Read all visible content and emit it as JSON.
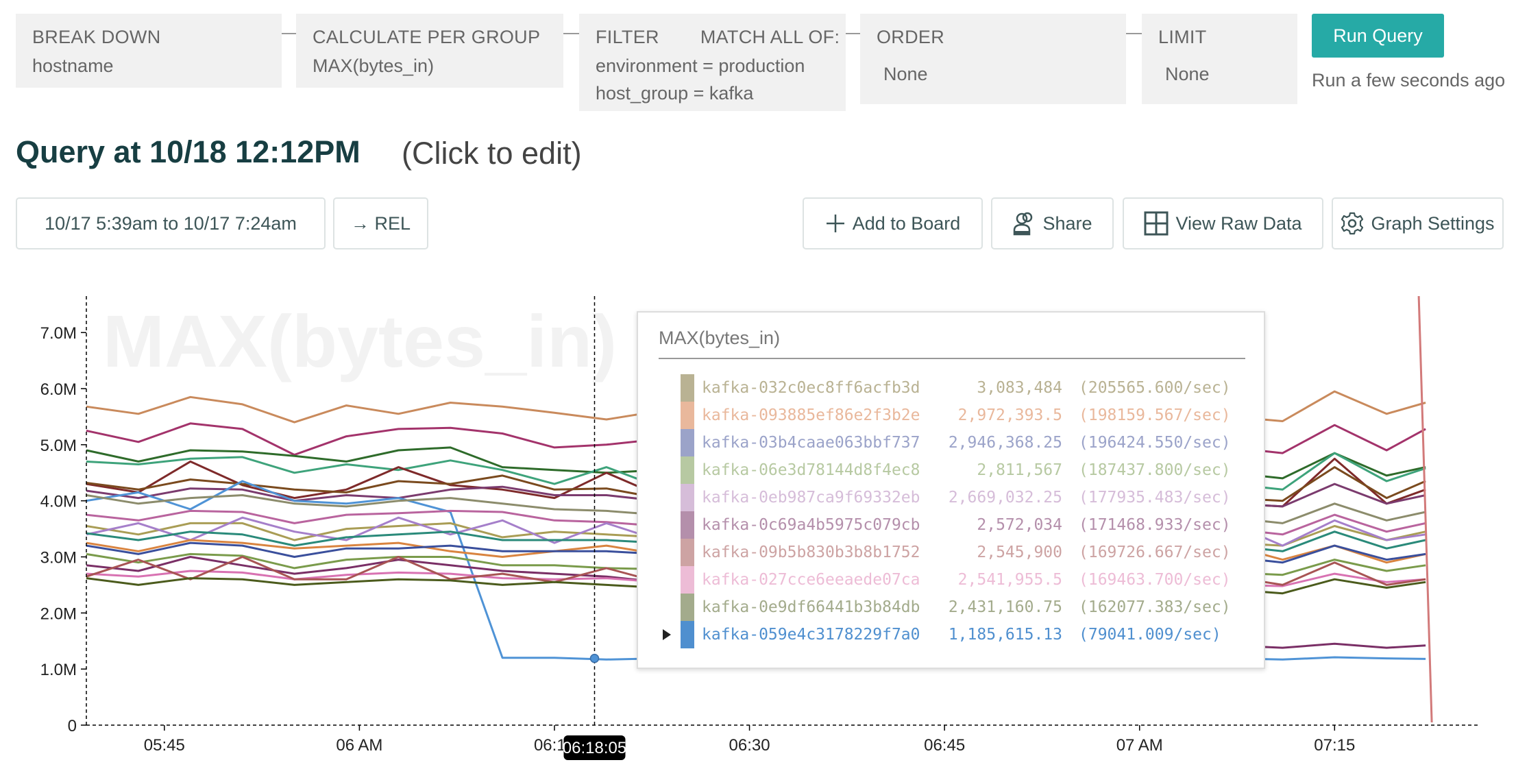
{
  "query_builder": {
    "break_down": {
      "label": "BREAK DOWN",
      "values": [
        "hostname"
      ]
    },
    "calculate": {
      "label": "CALCULATE PER GROUP",
      "values": [
        "MAX(bytes_in)"
      ]
    },
    "filter": {
      "label": "FILTER",
      "match_label": "MATCH ALL OF:",
      "values": [
        "environment = production",
        "host_group = kafka"
      ]
    },
    "order": {
      "label": "ORDER",
      "values": [
        "None"
      ]
    },
    "limit": {
      "label": "LIMIT",
      "values": [
        "None"
      ]
    },
    "run_button": "Run Query",
    "run_status": "Run a few seconds ago",
    "accent_color": "#26aaa6"
  },
  "header": {
    "title": "Query at 10/18 12:12PM",
    "edit_hint": "(Click to edit)"
  },
  "toolbar": {
    "time_range": "10/17 5:39am to 10/17 7:24am",
    "relative_button": "→ REL",
    "add_to_board": "Add to Board",
    "share": "Share",
    "view_raw_data": "View Raw Data",
    "graph_settings": "Graph Settings",
    "icons": {
      "add_to_board": "plus-icon",
      "share": "users-icon",
      "view_raw_data": "grid-icon",
      "graph_settings": "gear-icon"
    }
  },
  "tooltip": {
    "title": "MAX(bytes_in)",
    "rows": [
      {
        "name": "kafka-032c0ec8ff6acfb3d",
        "value": "3,083,484",
        "rate": "(205565.600/sec)",
        "color": "#b9b293"
      },
      {
        "name": "kafka-093885ef86e2f3b2e",
        "value": "2,972,393.5",
        "rate": "(198159.567/sec)",
        "color": "#e9b89c"
      },
      {
        "name": "kafka-03b4caae063bbf737",
        "value": "2,946,368.25",
        "rate": "(196424.550/sec)",
        "color": "#9ba3c9"
      },
      {
        "name": "kafka-06e3d78144d8f4ec8",
        "value": "2,811,567",
        "rate": "(187437.800/sec)",
        "color": "#b7c9a2"
      },
      {
        "name": "kafka-0eb987ca9f69332eb",
        "value": "2,669,032.25",
        "rate": "(177935.483/sec)",
        "color": "#d6bdd9"
      },
      {
        "name": "kafka-0c69a4b5975c079cb",
        "value": "2,572,034",
        "rate": "(171468.933/sec)",
        "color": "#b48fab"
      },
      {
        "name": "kafka-09b5b830b3b8b1752",
        "value": "2,545,900",
        "rate": "(169726.667/sec)",
        "color": "#cda3a3"
      },
      {
        "name": "kafka-027cce6eeaede07ca",
        "value": "2,541,955.5",
        "rate": "(169463.700/sec)",
        "color": "#edbcd6"
      },
      {
        "name": "kafka-0e9df66441b3b84db",
        "value": "2,431,160.75",
        "rate": "(162077.383/sec)",
        "color": "#a3ab8c"
      },
      {
        "name": "kafka-059e4c3178229f7a0",
        "value": "1,185,615.13",
        "rate": "(79041.009/sec)",
        "color": "#4f8fcf",
        "highlighted": true
      }
    ]
  },
  "chart_data": {
    "type": "line",
    "watermark": "MAX(bytes_in)",
    "y_unit": "M",
    "ylim": [
      0,
      7.65
    ],
    "xlim": [
      "05:39",
      "07:26"
    ],
    "y_ticks": [
      "0",
      "1.0M",
      "2.0M",
      "3.0M",
      "4.0M",
      "5.0M",
      "6.0M",
      "7.0M"
    ],
    "y_tick_values": [
      0,
      1,
      2,
      3,
      4,
      5,
      6,
      7
    ],
    "x_ticks": [
      {
        "label": "05:45",
        "time": "05:45"
      },
      {
        "label": "06 AM",
        "time": "06:00"
      },
      {
        "label": "06:15",
        "time": "06:15"
      },
      {
        "label": "06:30",
        "time": "06:30"
      },
      {
        "label": "06:45",
        "time": "06:45"
      },
      {
        "label": "07 AM",
        "time": "07:00"
      },
      {
        "label": "07:15",
        "time": "07:15"
      }
    ],
    "hover_time": "06:18:05",
    "hover_marker_value": 1.19,
    "marker_line": {
      "color": "#d27a7a",
      "time": "07:22"
    },
    "grid": false,
    "legend": "tooltip",
    "x": [
      "05:39",
      "05:43",
      "05:47",
      "05:51",
      "05:55",
      "05:59",
      "06:03",
      "06:07",
      "06:11",
      "06:15",
      "06:19",
      "06:23",
      "06:27",
      "06:31",
      "06:35",
      "06:39",
      "06:43",
      "06:47",
      "06:51",
      "06:55",
      "06:59",
      "07:03",
      "07:07",
      "07:11",
      "07:15",
      "07:19",
      "07:22"
    ],
    "series": [
      {
        "color": "#c98a5c",
        "values": [
          5.68,
          5.55,
          5.85,
          5.72,
          5.4,
          5.7,
          5.55,
          5.75,
          5.68,
          5.57,
          5.45,
          5.6,
          5.5,
          5.55,
          5.48,
          5.62,
          5.5,
          5.58,
          5.45,
          5.6,
          5.52,
          5.45,
          5.5,
          5.42,
          5.95,
          5.55,
          5.75
        ]
      },
      {
        "color": "#a3336b",
        "values": [
          5.25,
          5.05,
          5.38,
          5.28,
          4.82,
          5.15,
          5.28,
          5.3,
          5.2,
          4.95,
          5.0,
          5.1,
          5.05,
          4.9,
          5.0,
          4.95,
          5.05,
          4.9,
          5.1,
          5.0,
          5.15,
          5.05,
          4.95,
          4.85,
          5.35,
          4.9,
          5.28
        ]
      },
      {
        "color": "#2e6b2a",
        "values": [
          4.9,
          4.7,
          4.9,
          4.88,
          4.8,
          4.7,
          4.9,
          4.95,
          4.6,
          4.55,
          4.5,
          4.55,
          4.45,
          4.5,
          4.4,
          4.5,
          4.45,
          4.55,
          4.4,
          4.5,
          4.45,
          4.55,
          4.5,
          4.4,
          4.85,
          4.45,
          4.6
        ]
      },
      {
        "color": "#3ea37b",
        "values": [
          4.7,
          4.65,
          4.75,
          4.78,
          4.5,
          4.65,
          4.55,
          4.72,
          4.55,
          4.3,
          4.6,
          4.25,
          4.3,
          4.2,
          4.25,
          4.3,
          4.25,
          4.35,
          4.2,
          4.3,
          4.25,
          4.35,
          4.3,
          4.2,
          4.85,
          4.35,
          4.58
        ]
      },
      {
        "color": "#7e2a2a",
        "values": [
          4.3,
          4.15,
          4.7,
          4.28,
          4.05,
          4.2,
          4.6,
          4.28,
          4.2,
          4.05,
          4.5,
          4.1,
          4.05,
          3.95,
          3.9,
          4.1,
          4.0,
          4.05,
          3.95,
          4.0,
          3.95,
          4.1,
          3.95,
          3.9,
          4.75,
          3.95,
          4.2
        ]
      },
      {
        "color": "#7a4a1e",
        "values": [
          4.32,
          4.2,
          4.38,
          4.3,
          4.2,
          4.15,
          4.35,
          4.3,
          4.45,
          4.2,
          4.22,
          4.05,
          4.02,
          3.95,
          4.0,
          4.15,
          4.05,
          4.1,
          4.0,
          4.1,
          4.05,
          4.15,
          4.05,
          4.0,
          4.6,
          4.05,
          4.35
        ]
      },
      {
        "color": "#7b3b6e",
        "values": [
          4.18,
          4.05,
          4.22,
          4.2,
          4.0,
          4.1,
          4.05,
          4.2,
          4.25,
          4.1,
          4.1,
          4.0,
          4.05,
          3.9,
          3.95,
          4.05,
          4.0,
          4.05,
          3.95,
          4.0,
          3.98,
          4.02,
          3.95,
          3.9,
          4.3,
          3.95,
          4.1
        ]
      },
      {
        "color": "#4f93d6",
        "values": [
          4.0,
          4.15,
          3.85,
          4.35,
          4.0,
          3.95,
          4.05,
          3.8,
          1.2,
          1.2,
          1.17,
          1.19,
          1.2,
          1.18,
          1.2,
          1.19,
          1.2,
          1.18,
          1.2,
          1.19,
          1.2,
          1.18,
          1.19,
          1.17,
          1.21,
          1.19,
          1.18
        ]
      },
      {
        "color": "#8c8c6c",
        "values": [
          4.1,
          3.95,
          4.05,
          4.1,
          3.95,
          3.9,
          4.0,
          4.05,
          3.95,
          3.85,
          3.82,
          3.75,
          3.7,
          3.65,
          3.72,
          3.8,
          3.7,
          3.75,
          3.65,
          3.72,
          3.7,
          3.75,
          3.7,
          3.6,
          3.95,
          3.65,
          3.8
        ]
      },
      {
        "color": "#b9649e",
        "values": [
          3.75,
          3.65,
          3.82,
          3.8,
          3.6,
          3.75,
          3.78,
          3.82,
          3.8,
          3.65,
          3.62,
          3.55,
          3.5,
          3.45,
          3.5,
          3.6,
          3.5,
          3.55,
          3.45,
          3.5,
          3.48,
          3.55,
          3.5,
          3.4,
          3.75,
          3.45,
          3.6
        ]
      },
      {
        "color": "#a99d55",
        "values": [
          3.55,
          3.4,
          3.6,
          3.6,
          3.3,
          3.5,
          3.55,
          3.6,
          3.35,
          3.45,
          3.4,
          3.35,
          3.3,
          3.25,
          3.3,
          3.35,
          3.28,
          3.32,
          3.25,
          3.3,
          3.28,
          3.3,
          3.25,
          3.2,
          3.55,
          3.3,
          3.45
        ]
      },
      {
        "color": "#a57fca",
        "values": [
          3.4,
          3.6,
          3.3,
          3.7,
          3.45,
          3.3,
          3.7,
          3.4,
          3.65,
          3.25,
          3.6,
          3.3,
          3.65,
          3.25,
          3.3,
          3.55,
          3.25,
          3.3,
          3.5,
          3.3,
          3.3,
          3.35,
          3.6,
          3.2,
          3.65,
          3.3,
          3.4
        ]
      },
      {
        "color": "#2a8a7a",
        "values": [
          3.42,
          3.3,
          3.45,
          3.4,
          3.2,
          3.35,
          3.4,
          3.45,
          3.3,
          3.3,
          3.3,
          3.25,
          3.2,
          3.15,
          3.25,
          3.3,
          3.2,
          3.25,
          3.15,
          3.22,
          3.2,
          3.25,
          3.2,
          3.1,
          3.45,
          3.15,
          3.3
        ]
      },
      {
        "color": "#d98440",
        "values": [
          3.25,
          3.1,
          3.3,
          3.25,
          3.15,
          3.2,
          3.25,
          3.1,
          3.0,
          3.1,
          3.2,
          3.05,
          3.0,
          3.1,
          2.95,
          3.0,
          3.05,
          2.95,
          3.1,
          3.0,
          3.0,
          2.95,
          3.2,
          2.95,
          3.2,
          2.9,
          3.05
        ]
      },
      {
        "color": "#3a4f9c",
        "values": [
          3.2,
          3.05,
          3.25,
          3.2,
          3.0,
          3.15,
          3.15,
          3.2,
          3.1,
          3.1,
          3.1,
          3.05,
          3.0,
          2.95,
          3.1,
          3.0,
          3.05,
          3.0,
          2.95,
          3.05,
          3.0,
          3.1,
          3.0,
          2.9,
          3.2,
          2.95,
          3.05
        ]
      },
      {
        "color": "#7a9b4b",
        "values": [
          3.05,
          2.9,
          3.05,
          3.02,
          2.8,
          2.95,
          3.0,
          3.0,
          2.85,
          2.85,
          2.8,
          2.78,
          2.72,
          2.75,
          2.75,
          2.8,
          2.75,
          2.78,
          2.7,
          2.75,
          2.72,
          2.78,
          2.72,
          2.68,
          2.95,
          2.75,
          2.85
        ]
      },
      {
        "color": "#7a2f66",
        "values": [
          2.85,
          2.75,
          3.0,
          2.85,
          2.7,
          2.8,
          2.95,
          2.85,
          2.75,
          2.7,
          2.65,
          2.55,
          2.5,
          2.55,
          1.4,
          1.42,
          1.38,
          1.4,
          1.36,
          1.38,
          1.4,
          1.37,
          1.42,
          1.38,
          1.45,
          1.38,
          1.42
        ]
      },
      {
        "color": "#d872b2",
        "values": [
          2.7,
          2.65,
          2.75,
          2.72,
          2.6,
          2.68,
          2.72,
          2.7,
          2.62,
          2.6,
          2.62,
          2.55,
          2.5,
          2.55,
          2.5,
          2.58,
          2.52,
          2.55,
          2.5,
          2.55,
          2.52,
          2.55,
          2.5,
          2.48,
          2.7,
          2.55,
          2.6
        ]
      },
      {
        "color": "#a85454",
        "values": [
          2.65,
          2.95,
          2.6,
          3.0,
          2.6,
          2.6,
          3.0,
          2.6,
          2.7,
          2.55,
          2.8,
          2.55,
          2.6,
          2.5,
          2.55,
          2.6,
          2.5,
          2.55,
          2.5,
          2.6,
          2.55,
          2.55,
          2.65,
          2.5,
          2.9,
          2.5,
          2.6
        ]
      },
      {
        "color": "#4b5b1c",
        "values": [
          2.62,
          2.5,
          2.62,
          2.6,
          2.5,
          2.55,
          2.6,
          2.58,
          2.5,
          2.55,
          2.5,
          2.45,
          2.4,
          2.45,
          2.45,
          2.5,
          2.45,
          2.48,
          2.4,
          2.45,
          2.45,
          2.48,
          2.42,
          2.35,
          2.6,
          2.45,
          2.55
        ]
      }
    ]
  }
}
